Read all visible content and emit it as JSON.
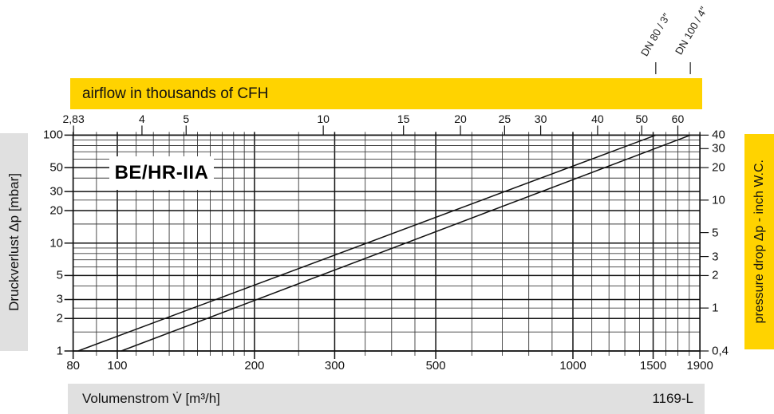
{
  "banner": {
    "label": "airflow in thousands of CFH",
    "bg": "#ffd300"
  },
  "model_box": {
    "label": "BE/HR-IIA"
  },
  "left_bar": {
    "label": "Druckverlust Δp [mbar]",
    "bg": "#e0e0e0"
  },
  "right_bar": {
    "label": "pressure  drop Δp - inch W.C.",
    "bg": "#ffd300"
  },
  "bottom_bar": {
    "label": "Volumenstrom V̇ [m³/h]",
    "doc_number": "1169-L",
    "bg": "#e0e0e0"
  },
  "chart_data": {
    "type": "line",
    "title": "BE/HR-IIA",
    "x_scale": "log",
    "y_scale": "log",
    "grid": "full log-log minor grid",
    "x_axis_bottom": {
      "label": "Volumenstrom V̇ [m³/h]",
      "range": [
        80,
        1900
      ],
      "labeled_ticks": [
        "80",
        "100",
        "200",
        "300",
        "500",
        "1000",
        "1500",
        "1900"
      ],
      "labeled_tick_values": [
        80,
        100,
        200,
        300,
        500,
        1000,
        1500,
        1900
      ],
      "gridline_values": [
        80,
        90,
        100,
        110,
        120,
        130,
        140,
        150,
        160,
        170,
        180,
        190,
        200,
        250,
        300,
        350,
        400,
        450,
        500,
        600,
        700,
        800,
        900,
        1000,
        1100,
        1200,
        1300,
        1400,
        1500,
        1600,
        1700,
        1800,
        1900
      ]
    },
    "x_axis_top": {
      "label": "airflow in thousands of CFH",
      "labeled_ticks": [
        "2,83",
        "4",
        "5",
        "10",
        "15",
        "20",
        "25",
        "30",
        "40",
        "50",
        "60"
      ],
      "labeled_tick_values": [
        2.83,
        4,
        5,
        10,
        15,
        20,
        25,
        30,
        40,
        50,
        60
      ],
      "m3h_per_thousand_cfh": 28.32
    },
    "y_axis_left": {
      "label": "Druckverlust Δp [mbar]",
      "range": [
        1,
        100
      ],
      "labeled_ticks": [
        "100",
        "50",
        "30",
        "20",
        "10",
        "5",
        "3",
        "2",
        "1"
      ],
      "labeled_tick_values": [
        100,
        50,
        30,
        20,
        10,
        5,
        3,
        2,
        1
      ],
      "gridline_values": [
        1,
        1.5,
        2,
        2.5,
        3,
        4,
        5,
        6,
        7,
        8,
        9,
        10,
        15,
        20,
        25,
        30,
        40,
        50,
        60,
        70,
        80,
        90,
        100
      ]
    },
    "y_axis_right": {
      "label": "pressure  drop Δp - inch W.C.",
      "range": [
        0.4,
        40
      ],
      "labeled_ticks": [
        "40",
        "30",
        "20",
        "10",
        "5",
        "3",
        "2",
        "1",
        "0,4"
      ],
      "labeled_tick_values": [
        40,
        30,
        20,
        10,
        5,
        3,
        2,
        1,
        0.4
      ],
      "mbar_per_inch_wc": 2.5
    },
    "series": [
      {
        "name": "DN 80 / 3″",
        "points_m3h_mbar": [
          [
            82,
            1
          ],
          [
            1520,
            100
          ]
        ]
      },
      {
        "name": "DN 100 / 4″",
        "points_m3h_mbar": [
          [
            102,
            1
          ],
          [
            1810,
            100
          ]
        ]
      }
    ],
    "doc_number": "1169-L",
    "colors": {
      "accent_yellow": "#ffd300",
      "bar_gray": "#e0e0e0",
      "line": "#111111"
    }
  }
}
